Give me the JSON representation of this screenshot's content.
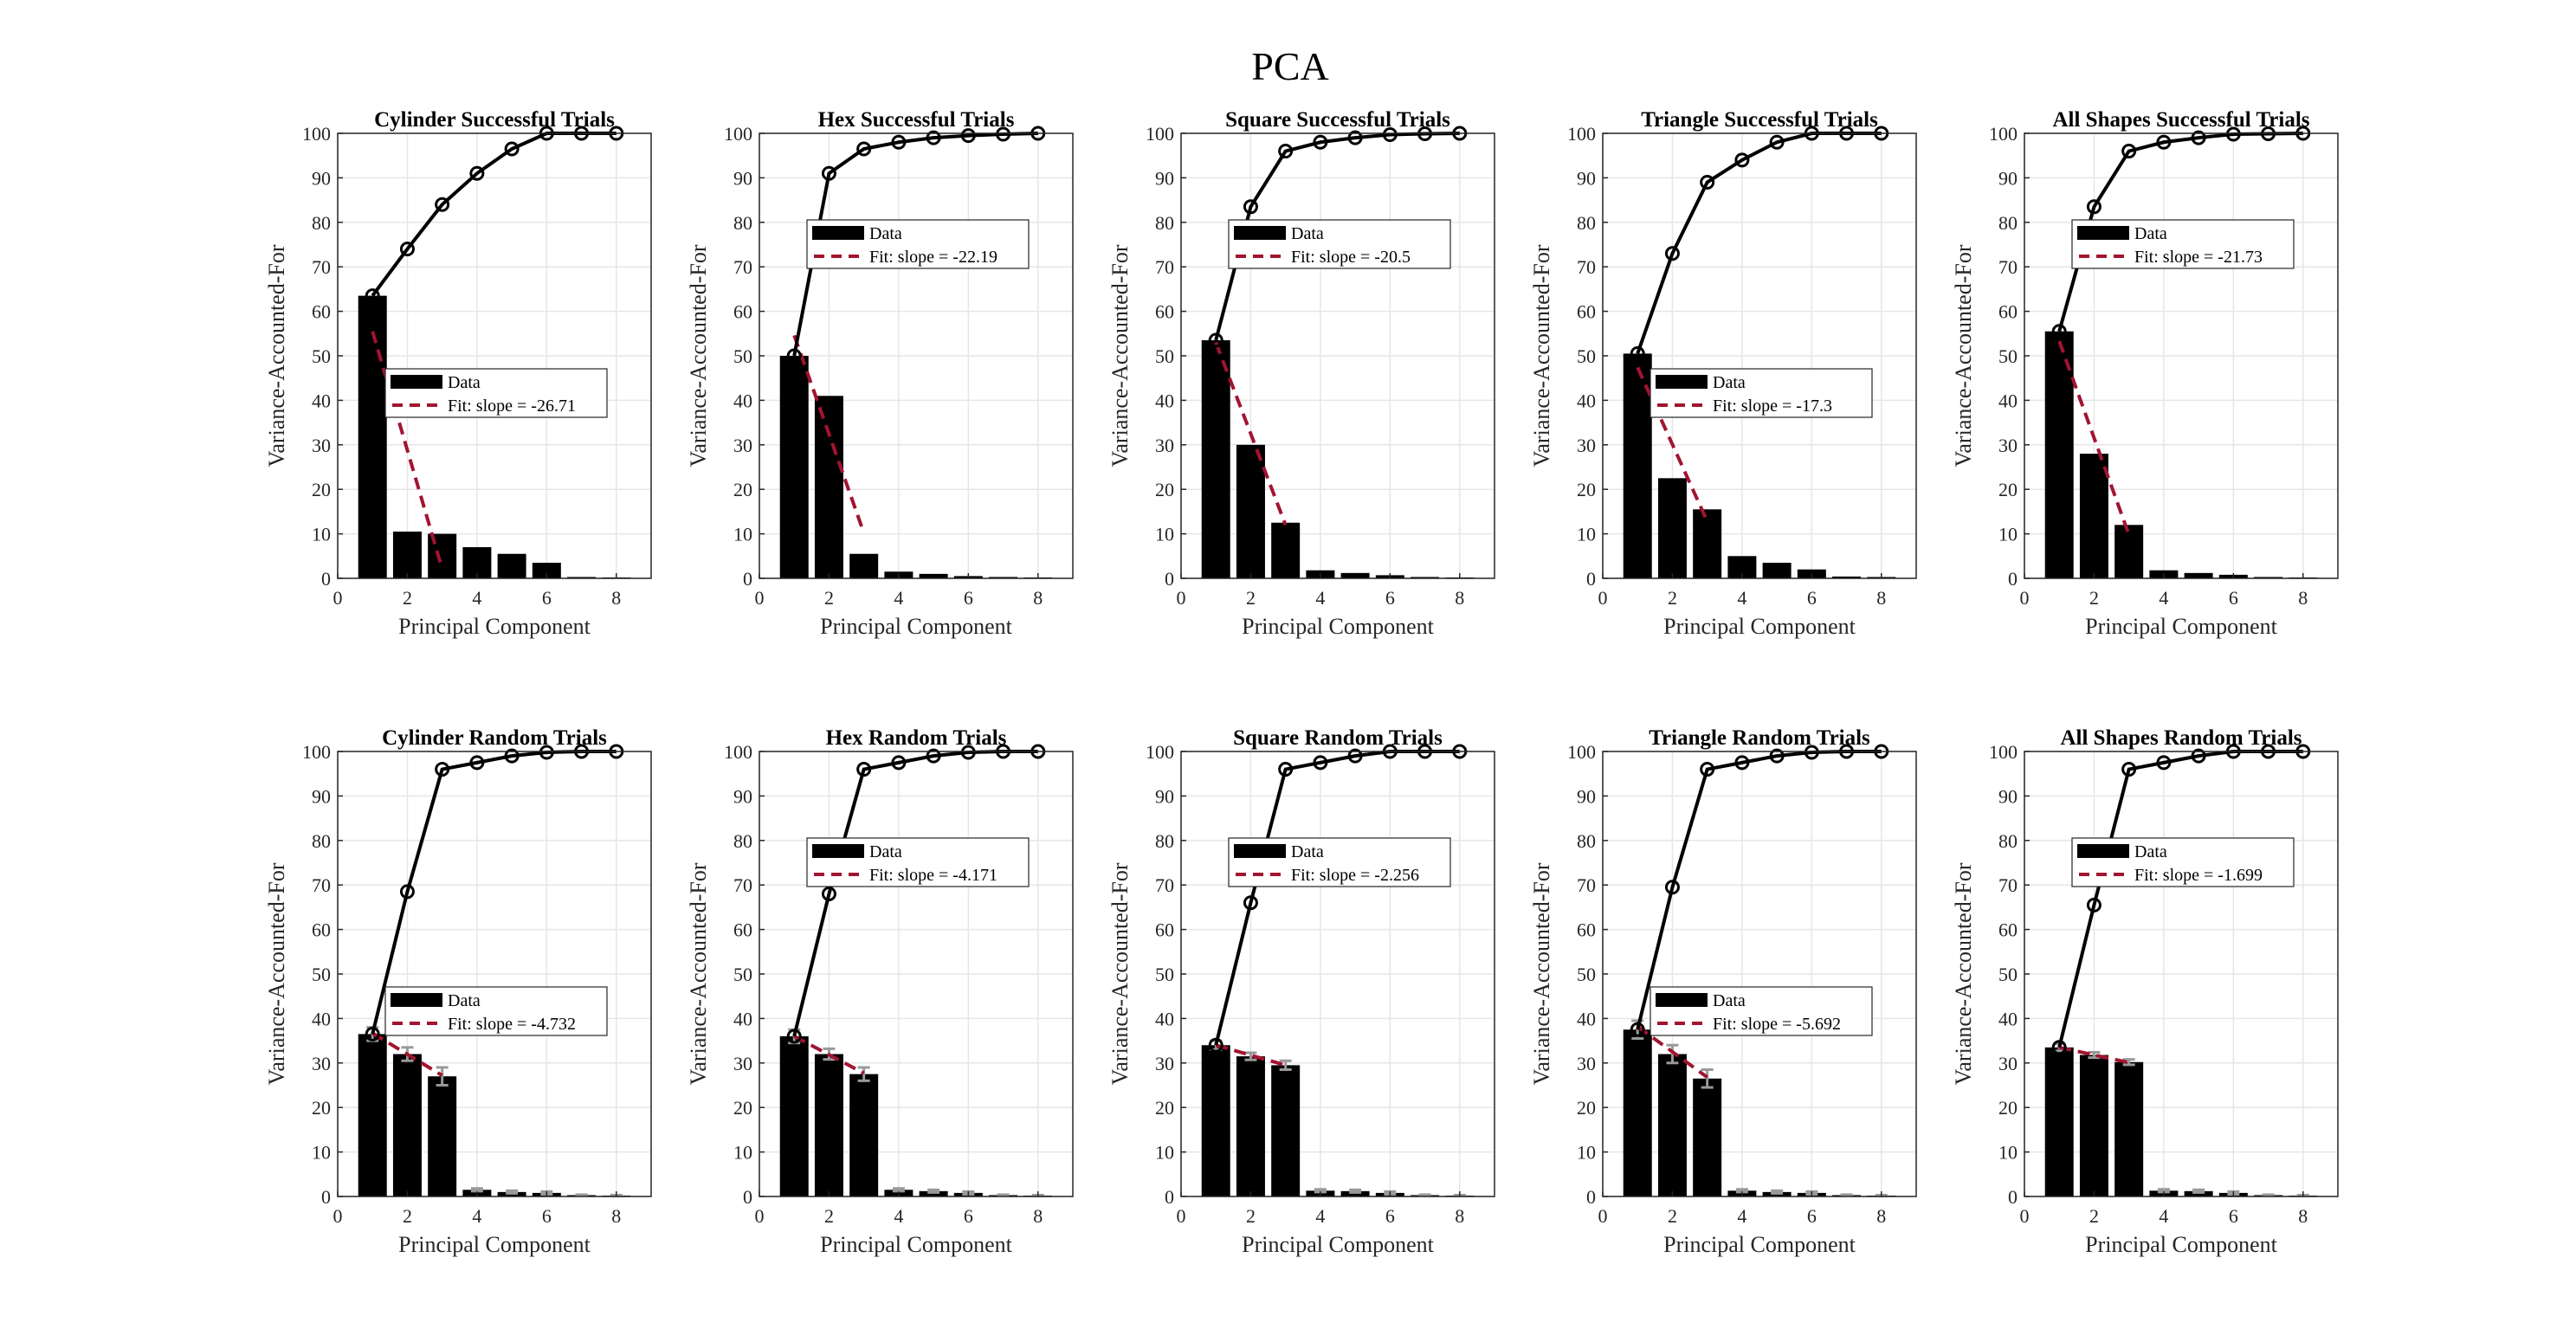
{
  "figure_title": "PCA",
  "colors": {
    "bar": "#000000",
    "fit": "#a2142f",
    "cumulative": "#000000",
    "errorbar": "#999999",
    "grid": "#e6e6e6"
  },
  "chart_data": [
    {
      "type": "bar",
      "title": "Cylinder Successful Trials",
      "xlabel": "Principal Component",
      "ylabel": "Variance-Accounted-For",
      "x": [
        1,
        2,
        3,
        4,
        5,
        6,
        7,
        8
      ],
      "values": [
        63.5,
        10.5,
        10,
        7,
        5.5,
        3.5,
        0.3,
        0.2
      ],
      "cumulative": [
        63.5,
        74,
        84,
        91,
        96.5,
        100,
        100,
        100
      ],
      "errors": null,
      "fit": {
        "x": [
          1,
          3
        ],
        "y": [
          55.5,
          2.1
        ]
      },
      "legend": [
        "Data",
        "Fit: slope = -26.71"
      ],
      "legend_position": "middle",
      "xlim": [
        0,
        9
      ],
      "ylim": [
        0,
        100
      ],
      "xticks": [
        0,
        2,
        4,
        6,
        8
      ],
      "yticks": [
        0,
        10,
        20,
        30,
        40,
        50,
        60,
        70,
        80,
        90,
        100
      ],
      "grid": true
    },
    {
      "type": "bar",
      "title": "Hex Successful Trials",
      "xlabel": "Principal Component",
      "ylabel": "Variance-Accounted-For",
      "x": [
        1,
        2,
        3,
        4,
        5,
        6,
        7,
        8
      ],
      "values": [
        50,
        41,
        5.5,
        1.5,
        1,
        0.5,
        0.3,
        0.2
      ],
      "cumulative": [
        50,
        91,
        96.5,
        98,
        99,
        99.5,
        99.8,
        100
      ],
      "errors": null,
      "fit": {
        "x": [
          1,
          3
        ],
        "y": [
          54.6,
          10.2
        ]
      },
      "legend": [
        "Data",
        "Fit: slope = -22.19"
      ],
      "legend_position": "upper",
      "xlim": [
        0,
        9
      ],
      "ylim": [
        0,
        100
      ],
      "xticks": [
        0,
        2,
        4,
        6,
        8
      ],
      "yticks": [
        0,
        10,
        20,
        30,
        40,
        50,
        60,
        70,
        80,
        90,
        100
      ],
      "grid": true
    },
    {
      "type": "bar",
      "title": "Square Successful Trials",
      "xlabel": "Principal Component",
      "ylabel": "Variance-Accounted-For",
      "x": [
        1,
        2,
        3,
        4,
        5,
        6,
        7,
        8
      ],
      "values": [
        53.5,
        30,
        12.5,
        1.8,
        1.2,
        0.7,
        0.3,
        0.2
      ],
      "cumulative": [
        53.5,
        83.5,
        96,
        98,
        99,
        99.7,
        99.9,
        100
      ],
      "errors": null,
      "fit": {
        "x": [
          1,
          3
        ],
        "y": [
          53,
          12
        ]
      },
      "legend": [
        "Data",
        "Fit: slope = -20.5"
      ],
      "legend_position": "upper",
      "xlim": [
        0,
        9
      ],
      "ylim": [
        0,
        100
      ],
      "xticks": [
        0,
        2,
        4,
        6,
        8
      ],
      "yticks": [
        0,
        10,
        20,
        30,
        40,
        50,
        60,
        70,
        80,
        90,
        100
      ],
      "grid": true
    },
    {
      "type": "bar",
      "title": "Triangle Successful Trials",
      "xlabel": "Principal Component",
      "ylabel": "Variance-Accounted-For",
      "x": [
        1,
        2,
        3,
        4,
        5,
        6,
        7,
        8
      ],
      "values": [
        50.5,
        22.5,
        15.5,
        5,
        3.5,
        2,
        0.4,
        0.3
      ],
      "cumulative": [
        50.5,
        73,
        89,
        94,
        98,
        100,
        100,
        100
      ],
      "errors": null,
      "fit": {
        "x": [
          1,
          3
        ],
        "y": [
          47.4,
          12.8
        ]
      },
      "legend": [
        "Data",
        "Fit: slope = -17.3"
      ],
      "legend_position": "middle",
      "xlim": [
        0,
        9
      ],
      "ylim": [
        0,
        100
      ],
      "xticks": [
        0,
        2,
        4,
        6,
        8
      ],
      "yticks": [
        0,
        10,
        20,
        30,
        40,
        50,
        60,
        70,
        80,
        90,
        100
      ],
      "grid": true
    },
    {
      "type": "bar",
      "title": "All Shapes Successful Trials",
      "xlabel": "Principal Component",
      "ylabel": "Variance-Accounted-For",
      "x": [
        1,
        2,
        3,
        4,
        5,
        6,
        7,
        8
      ],
      "values": [
        55.5,
        28,
        12,
        1.8,
        1.2,
        0.8,
        0.3,
        0.2
      ],
      "cumulative": [
        55.5,
        83.5,
        96,
        98,
        99,
        99.8,
        99.9,
        100
      ],
      "errors": null,
      "fit": {
        "x": [
          1,
          3
        ],
        "y": [
          53.3,
          9.8
        ]
      },
      "legend": [
        "Data",
        "Fit: slope = -21.73"
      ],
      "legend_position": "upper",
      "xlim": [
        0,
        9
      ],
      "ylim": [
        0,
        100
      ],
      "xticks": [
        0,
        2,
        4,
        6,
        8
      ],
      "yticks": [
        0,
        10,
        20,
        30,
        40,
        50,
        60,
        70,
        80,
        90,
        100
      ],
      "grid": true
    },
    {
      "type": "bar",
      "title": "Cylinder Random Trials",
      "xlabel": "Principal Component",
      "ylabel": "Variance-Accounted-For",
      "x": [
        1,
        2,
        3,
        4,
        5,
        6,
        7,
        8
      ],
      "values": [
        36.5,
        32,
        27,
        1.5,
        1,
        0.8,
        0.3,
        0.2
      ],
      "cumulative": [
        36.5,
        68.5,
        96,
        97.5,
        99,
        99.8,
        100,
        100
      ],
      "errors": [
        1.5,
        1.5,
        2,
        0.3,
        0.3,
        0.3,
        0.1,
        0.1
      ],
      "fit": {
        "x": [
          1,
          3
        ],
        "y": [
          36.7,
          27.2
        ]
      },
      "legend": [
        "Data",
        "Fit: slope = -4.732"
      ],
      "legend_position": "middle",
      "xlim": [
        0,
        9
      ],
      "ylim": [
        0,
        100
      ],
      "xticks": [
        0,
        2,
        4,
        6,
        8
      ],
      "yticks": [
        0,
        10,
        20,
        30,
        40,
        50,
        60,
        70,
        80,
        90,
        100
      ],
      "grid": true
    },
    {
      "type": "bar",
      "title": "Hex Random Trials",
      "xlabel": "Principal Component",
      "ylabel": "Variance-Accounted-For",
      "x": [
        1,
        2,
        3,
        4,
        5,
        6,
        7,
        8
      ],
      "values": [
        36,
        32,
        27.5,
        1.5,
        1.2,
        0.8,
        0.3,
        0.2
      ],
      "cumulative": [
        36,
        68,
        96,
        97.5,
        99,
        99.8,
        100,
        100
      ],
      "errors": [
        1.5,
        1.2,
        1.5,
        0.3,
        0.3,
        0.3,
        0.1,
        0.1
      ],
      "fit": {
        "x": [
          1,
          3
        ],
        "y": [
          36,
          27.7
        ]
      },
      "legend": [
        "Data",
        "Fit: slope = -4.171"
      ],
      "legend_position": "upper",
      "xlim": [
        0,
        9
      ],
      "ylim": [
        0,
        100
      ],
      "xticks": [
        0,
        2,
        4,
        6,
        8
      ],
      "yticks": [
        0,
        10,
        20,
        30,
        40,
        50,
        60,
        70,
        80,
        90,
        100
      ],
      "grid": true
    },
    {
      "type": "bar",
      "title": "Square Random Trials",
      "xlabel": "Principal Component",
      "ylabel": "Variance-Accounted-For",
      "x": [
        1,
        2,
        3,
        4,
        5,
        6,
        7,
        8
      ],
      "values": [
        34,
        31.5,
        29.5,
        1.3,
        1.2,
        0.8,
        0.3,
        0.2
      ],
      "cumulative": [
        34,
        66,
        96,
        97.5,
        99,
        100,
        100,
        100
      ],
      "errors": [
        1,
        0.8,
        1,
        0.3,
        0.3,
        0.3,
        0.1,
        0.1
      ],
      "fit": {
        "x": [
          1,
          3
        ],
        "y": [
          34,
          29.5
        ]
      },
      "legend": [
        "Data",
        "Fit: slope = -2.256"
      ],
      "legend_position": "upper",
      "xlim": [
        0,
        9
      ],
      "ylim": [
        0,
        100
      ],
      "xticks": [
        0,
        2,
        4,
        6,
        8
      ],
      "yticks": [
        0,
        10,
        20,
        30,
        40,
        50,
        60,
        70,
        80,
        90,
        100
      ],
      "grid": true
    },
    {
      "type": "bar",
      "title": "Triangle Random Trials",
      "xlabel": "Principal Component",
      "ylabel": "Variance-Accounted-For",
      "x": [
        1,
        2,
        3,
        4,
        5,
        6,
        7,
        8
      ],
      "values": [
        37.5,
        32,
        26.5,
        1.3,
        1,
        0.8,
        0.3,
        0.2
      ],
      "cumulative": [
        37.5,
        69.5,
        96,
        97.5,
        99,
        99.8,
        100,
        100
      ],
      "errors": [
        2,
        2,
        2,
        0.3,
        0.3,
        0.3,
        0.1,
        0.1
      ],
      "fit": {
        "x": [
          1,
          3
        ],
        "y": [
          38.2,
          26.8
        ]
      },
      "legend": [
        "Data",
        "Fit: slope = -5.692"
      ],
      "legend_position": "middle",
      "xlim": [
        0,
        9
      ],
      "ylim": [
        0,
        100
      ],
      "xticks": [
        0,
        2,
        4,
        6,
        8
      ],
      "yticks": [
        0,
        10,
        20,
        30,
        40,
        50,
        60,
        70,
        80,
        90,
        100
      ],
      "grid": true
    },
    {
      "type": "bar",
      "title": "All Shapes Random Trials",
      "xlabel": "Principal Component",
      "ylabel": "Variance-Accounted-For",
      "x": [
        1,
        2,
        3,
        4,
        5,
        6,
        7,
        8
      ],
      "values": [
        33.5,
        31.8,
        30.2,
        1.3,
        1.2,
        0.8,
        0.3,
        0.2
      ],
      "cumulative": [
        33.5,
        65.5,
        96,
        97.5,
        99,
        100,
        100,
        100
      ],
      "errors": [
        0.8,
        0.6,
        0.6,
        0.3,
        0.3,
        0.3,
        0.1,
        0.1
      ],
      "fit": {
        "x": [
          1,
          3
        ],
        "y": [
          33.5,
          30.1
        ]
      },
      "legend": [
        "Data",
        "Fit: slope = -1.699"
      ],
      "legend_position": "upper",
      "xlim": [
        0,
        9
      ],
      "ylim": [
        0,
        100
      ],
      "xticks": [
        0,
        2,
        4,
        6,
        8
      ],
      "yticks": [
        0,
        10,
        20,
        30,
        40,
        50,
        60,
        70,
        80,
        90,
        100
      ],
      "grid": true
    }
  ]
}
